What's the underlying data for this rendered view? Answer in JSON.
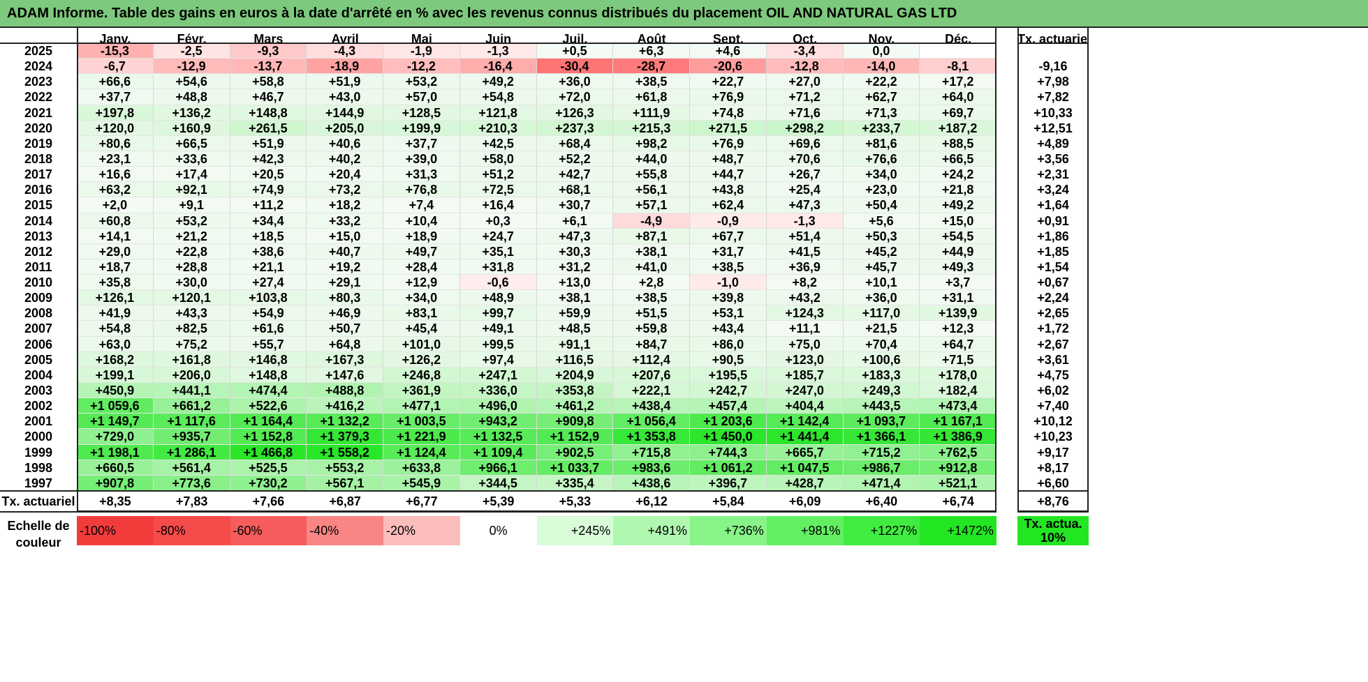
{
  "title": "ADAM Informe. Table des gains en euros à la date d'arrêté en % avec les revenus connus distribués du placement OIL AND NATURAL GAS LTD",
  "months": [
    "Janv.",
    "Févr.",
    "Mars",
    "Avril",
    "Mai",
    "Juin",
    "Juil.",
    "Août",
    "Sept.",
    "Oct.",
    "Nov.",
    "Déc."
  ],
  "annual_header": "Tx. actuariel",
  "rows": [
    {
      "year": "2025",
      "values": [
        "-15,3",
        "-2,5",
        "-9,3",
        "-4,3",
        "-1,9",
        "-1,3",
        "+0,5",
        "+6,3",
        "+4,6",
        "-3,4",
        "0,0",
        ""
      ],
      "annual": ""
    },
    {
      "year": "2024",
      "values": [
        "-6,7",
        "-12,9",
        "-13,7",
        "-18,9",
        "-12,2",
        "-16,4",
        "-30,4",
        "-28,7",
        "-20,6",
        "-12,8",
        "-14,0",
        "-8,1"
      ],
      "annual": "-9,16"
    },
    {
      "year": "2023",
      "values": [
        "+66,6",
        "+54,6",
        "+58,8",
        "+51,9",
        "+53,2",
        "+49,2",
        "+36,0",
        "+38,5",
        "+22,7",
        "+27,0",
        "+22,2",
        "+17,2"
      ],
      "annual": "+7,98"
    },
    {
      "year": "2022",
      "values": [
        "+37,7",
        "+48,8",
        "+46,7",
        "+43,0",
        "+57,0",
        "+54,8",
        "+72,0",
        "+61,8",
        "+76,9",
        "+71,2",
        "+62,7",
        "+64,0"
      ],
      "annual": "+7,82"
    },
    {
      "year": "2021",
      "values": [
        "+197,8",
        "+136,2",
        "+148,8",
        "+144,9",
        "+128,5",
        "+121,8",
        "+126,3",
        "+111,9",
        "+74,8",
        "+71,6",
        "+71,3",
        "+69,7"
      ],
      "annual": "+10,33"
    },
    {
      "year": "2020",
      "values": [
        "+120,0",
        "+160,9",
        "+261,5",
        "+205,0",
        "+199,9",
        "+210,3",
        "+237,3",
        "+215,3",
        "+271,5",
        "+298,2",
        "+233,7",
        "+187,2"
      ],
      "annual": "+12,51"
    },
    {
      "year": "2019",
      "values": [
        "+80,6",
        "+66,5",
        "+51,9",
        "+40,6",
        "+37,7",
        "+42,5",
        "+68,4",
        "+98,2",
        "+76,9",
        "+69,6",
        "+81,6",
        "+88,5"
      ],
      "annual": "+4,89"
    },
    {
      "year": "2018",
      "values": [
        "+23,1",
        "+33,6",
        "+42,3",
        "+40,2",
        "+39,0",
        "+58,0",
        "+52,2",
        "+44,0",
        "+48,7",
        "+70,6",
        "+76,6",
        "+66,5"
      ],
      "annual": "+3,56"
    },
    {
      "year": "2017",
      "values": [
        "+16,6",
        "+17,4",
        "+20,5",
        "+20,4",
        "+31,3",
        "+51,2",
        "+42,7",
        "+55,8",
        "+44,7",
        "+26,7",
        "+34,0",
        "+24,2"
      ],
      "annual": "+2,31"
    },
    {
      "year": "2016",
      "values": [
        "+63,2",
        "+92,1",
        "+74,9",
        "+73,2",
        "+76,8",
        "+72,5",
        "+68,1",
        "+56,1",
        "+43,8",
        "+25,4",
        "+23,0",
        "+21,8"
      ],
      "annual": "+3,24"
    },
    {
      "year": "2015",
      "values": [
        "+2,0",
        "+9,1",
        "+11,2",
        "+18,2",
        "+7,4",
        "+16,4",
        "+30,7",
        "+57,1",
        "+62,4",
        "+47,3",
        "+50,4",
        "+49,2"
      ],
      "annual": "+1,64"
    },
    {
      "year": "2014",
      "values": [
        "+60,8",
        "+53,2",
        "+34,4",
        "+33,2",
        "+10,4",
        "+0,3",
        "+6,1",
        "-4,9",
        "-0,9",
        "-1,3",
        "+5,6",
        "+15,0"
      ],
      "annual": "+0,91"
    },
    {
      "year": "2013",
      "values": [
        "+14,1",
        "+21,2",
        "+18,5",
        "+15,0",
        "+18,9",
        "+24,7",
        "+47,3",
        "+87,1",
        "+67,7",
        "+51,4",
        "+50,3",
        "+54,5"
      ],
      "annual": "+1,86"
    },
    {
      "year": "2012",
      "values": [
        "+29,0",
        "+22,8",
        "+38,6",
        "+40,7",
        "+49,7",
        "+35,1",
        "+30,3",
        "+38,1",
        "+31,7",
        "+41,5",
        "+45,2",
        "+44,9"
      ],
      "annual": "+1,85"
    },
    {
      "year": "2011",
      "values": [
        "+18,7",
        "+28,8",
        "+21,1",
        "+19,2",
        "+28,4",
        "+31,8",
        "+31,2",
        "+41,0",
        "+38,5",
        "+36,9",
        "+45,7",
        "+49,3"
      ],
      "annual": "+1,54"
    },
    {
      "year": "2010",
      "values": [
        "+35,8",
        "+30,0",
        "+27,4",
        "+29,1",
        "+12,9",
        "-0,6",
        "+13,0",
        "+2,8",
        "-1,0",
        "+8,2",
        "+10,1",
        "+3,7"
      ],
      "annual": "+0,67"
    },
    {
      "year": "2009",
      "values": [
        "+126,1",
        "+120,1",
        "+103,8",
        "+80,3",
        "+34,0",
        "+48,9",
        "+38,1",
        "+38,5",
        "+39,8",
        "+43,2",
        "+36,0",
        "+31,1"
      ],
      "annual": "+2,24"
    },
    {
      "year": "2008",
      "values": [
        "+41,9",
        "+43,3",
        "+54,9",
        "+46,9",
        "+83,1",
        "+99,7",
        "+59,9",
        "+51,5",
        "+53,1",
        "+124,3",
        "+117,0",
        "+139,9"
      ],
      "annual": "+2,65"
    },
    {
      "year": "2007",
      "values": [
        "+54,8",
        "+82,5",
        "+61,6",
        "+50,7",
        "+45,4",
        "+49,1",
        "+48,5",
        "+59,8",
        "+43,4",
        "+11,1",
        "+21,5",
        "+12,3"
      ],
      "annual": "+1,72"
    },
    {
      "year": "2006",
      "values": [
        "+63,0",
        "+75,2",
        "+55,7",
        "+64,8",
        "+101,0",
        "+99,5",
        "+91,1",
        "+84,7",
        "+86,0",
        "+75,0",
        "+70,4",
        "+64,7"
      ],
      "annual": "+2,67"
    },
    {
      "year": "2005",
      "values": [
        "+168,2",
        "+161,8",
        "+146,8",
        "+167,3",
        "+126,2",
        "+97,4",
        "+116,5",
        "+112,4",
        "+90,5",
        "+123,0",
        "+100,6",
        "+71,5"
      ],
      "annual": "+3,61"
    },
    {
      "year": "2004",
      "values": [
        "+199,1",
        "+206,0",
        "+148,8",
        "+147,6",
        "+246,8",
        "+247,1",
        "+204,9",
        "+207,6",
        "+195,5",
        "+185,7",
        "+183,3",
        "+178,0"
      ],
      "annual": "+4,75"
    },
    {
      "year": "2003",
      "values": [
        "+450,9",
        "+441,1",
        "+474,4",
        "+488,8",
        "+361,9",
        "+336,0",
        "+353,8",
        "+222,1",
        "+242,7",
        "+247,0",
        "+249,3",
        "+182,4"
      ],
      "annual": "+6,02"
    },
    {
      "year": "2002",
      "values": [
        "+1 059,6",
        "+661,2",
        "+522,6",
        "+416,2",
        "+477,1",
        "+496,0",
        "+461,2",
        "+438,4",
        "+457,4",
        "+404,4",
        "+443,5",
        "+473,4"
      ],
      "annual": "+7,40"
    },
    {
      "year": "2001",
      "values": [
        "+1 149,7",
        "+1 117,6",
        "+1 164,4",
        "+1 132,2",
        "+1 003,5",
        "+943,2",
        "+909,8",
        "+1 056,4",
        "+1 203,6",
        "+1 142,4",
        "+1 093,7",
        "+1 167,1"
      ],
      "annual": "+10,12"
    },
    {
      "year": "2000",
      "values": [
        "+729,0",
        "+935,7",
        "+1 152,8",
        "+1 379,3",
        "+1 221,9",
        "+1 132,5",
        "+1 152,9",
        "+1 353,8",
        "+1 450,0",
        "+1 441,4",
        "+1 366,1",
        "+1 386,9"
      ],
      "annual": "+10,23"
    },
    {
      "year": "1999",
      "values": [
        "+1 198,1",
        "+1 286,1",
        "+1 466,8",
        "+1 558,2",
        "+1 124,4",
        "+1 109,4",
        "+902,5",
        "+715,8",
        "+744,3",
        "+665,7",
        "+715,2",
        "+762,5"
      ],
      "annual": "+9,17"
    },
    {
      "year": "1998",
      "values": [
        "+660,5",
        "+561,4",
        "+525,5",
        "+553,2",
        "+633,8",
        "+966,1",
        "+1 033,7",
        "+983,6",
        "+1 061,2",
        "+1 047,5",
        "+986,7",
        "+912,8"
      ],
      "annual": "+8,17"
    },
    {
      "year": "1997",
      "values": [
        "+907,8",
        "+773,6",
        "+730,2",
        "+567,1",
        "+545,9",
        "+344,5",
        "+335,4",
        "+438,6",
        "+396,7",
        "+428,7",
        "+471,4",
        "+521,1"
      ],
      "annual": "+6,60"
    }
  ],
  "totals": {
    "label": "Tx. actuariel",
    "values": [
      "+8,35",
      "+7,83",
      "+7,66",
      "+6,87",
      "+6,77",
      "+5,39",
      "+5,33",
      "+6,12",
      "+5,84",
      "+6,09",
      "+6,40",
      "+6,74"
    ],
    "annual": "+8,76"
  },
  "legend": {
    "label": "Echelle de couleur",
    "steps": [
      "-100%",
      "-80%",
      "-60%",
      "-40%",
      "-20%",
      "0%",
      "+245%",
      "+491%",
      "+736%",
      "+981%",
      "+1227%",
      "+1472%"
    ],
    "step_colors": [
      "#f23c3c",
      "#f54b4b",
      "#f65c5c",
      "#f98585",
      "#fbbcbc",
      "#ffffff",
      "#d8fcd8",
      "#b0f8b0",
      "#88f488",
      "#62f062",
      "#40ec40",
      "#22e622"
    ],
    "annual_label": "Tx. actua. 10%",
    "annual_color": "#22e622"
  },
  "colors": {
    "title_bar": "#7dc97d",
    "negative": "#f23c3c",
    "positive": "#22e622"
  }
}
